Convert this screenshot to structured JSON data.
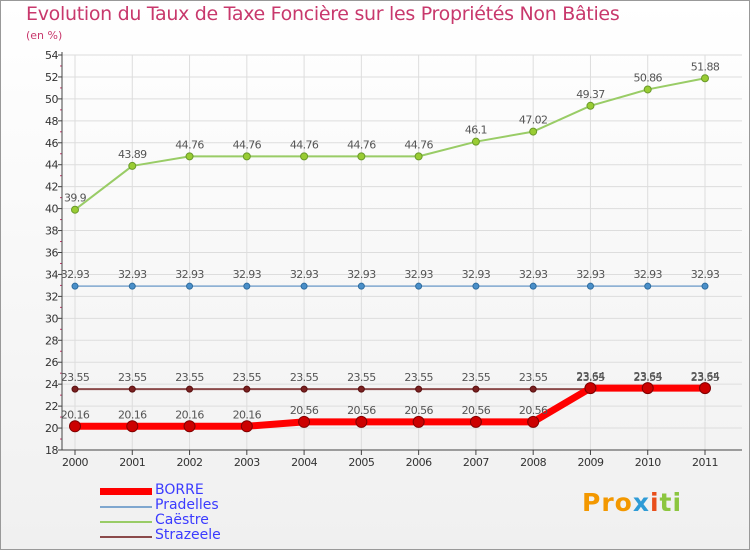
{
  "chart_data": {
    "type": "line",
    "title": "Evolution du Taux de Taxe Foncière sur les Propriétés Non Bâties",
    "ylabel": "(en %)",
    "x": [
      "2000",
      "2001",
      "2002",
      "2003",
      "2004",
      "2005",
      "2006",
      "2007",
      "2008",
      "2009",
      "2010",
      "2011"
    ],
    "ylim": [
      18,
      54
    ],
    "yticks": [
      "18",
      "20",
      "22",
      "24",
      "26",
      "28",
      "30",
      "32",
      "34",
      "36",
      "38",
      "40",
      "42",
      "44",
      "46",
      "48",
      "50",
      "52",
      "54"
    ],
    "series": [
      {
        "name": "Caëstre",
        "color": "#99cc66",
        "values": [
          39.9,
          43.89,
          44.76,
          44.76,
          44.76,
          44.76,
          44.76,
          46.1,
          47.02,
          49.37,
          50.86,
          51.88
        ],
        "labels": [
          "39.9",
          "43.89",
          "44.76",
          "44.76",
          "44.76",
          "44.76",
          "44.76",
          "46.1",
          "47.02",
          "49.37",
          "50.86",
          "51.88"
        ]
      },
      {
        "name": "Pradelles",
        "color": "#7fa7cf",
        "values": [
          32.93,
          32.93,
          32.93,
          32.93,
          32.93,
          32.93,
          32.93,
          32.93,
          32.93,
          32.93,
          32.93,
          32.93
        ],
        "labels": [
          "32.93",
          "32.93",
          "32.93",
          "32.93",
          "32.93",
          "32.93",
          "32.93",
          "32.93",
          "32.93",
          "32.93",
          "32.93",
          "32.93"
        ]
      },
      {
        "name": "Strazeele",
        "color": "#8b4a4a",
        "values": [
          23.55,
          23.55,
          23.55,
          23.55,
          23.55,
          23.55,
          23.55,
          23.55,
          23.55,
          23.55,
          23.55,
          23.55
        ],
        "labels": [
          "23.55",
          "23.55",
          "23.55",
          "23.55",
          "23.55",
          "23.55",
          "23.55",
          "23.55",
          "23.55",
          "23.55",
          "23.55",
          "23.55"
        ]
      },
      {
        "name": "BORRE",
        "color": "#ff0000",
        "values": [
          20.16,
          20.16,
          20.16,
          20.16,
          20.56,
          20.56,
          20.56,
          20.56,
          20.56,
          23.64,
          23.64,
          23.64
        ],
        "labels": [
          "20.16",
          "20.16",
          "20.16",
          "20.16",
          "20.56",
          "20.56",
          "20.56",
          "20.56",
          "20.56",
          "23.64",
          "23.64",
          "23.64"
        ]
      }
    ],
    "legend": [
      "BORRE",
      "Pradelles",
      "Caëstre",
      "Strazeele"
    ]
  },
  "logo": {
    "p1": "Pro",
    "p2": "x",
    "p3": "i",
    "p4": "ti"
  }
}
